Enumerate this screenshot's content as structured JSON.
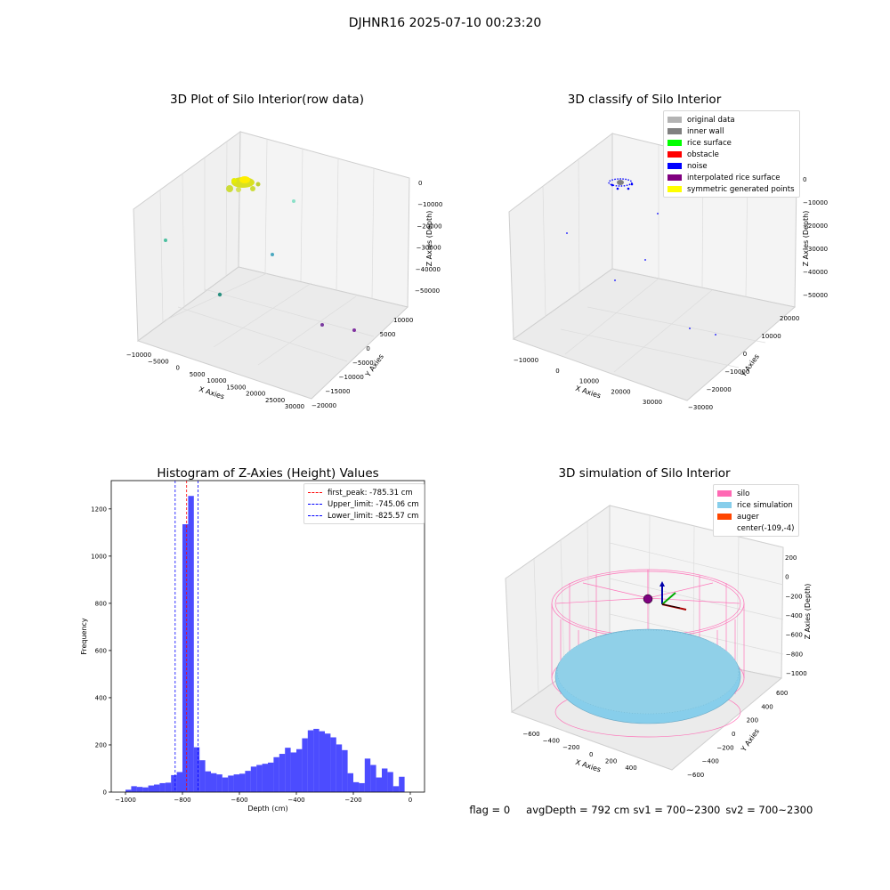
{
  "figure": {
    "title": "DJHNR16 2025-07-10 00:23:20"
  },
  "panels": {
    "raw": {
      "title": "3D Plot of Silo Interior(row data)",
      "xlabel": "X Axies",
      "ylabel": "Y Axies",
      "zlabel": "Z Axies (Depth)",
      "xticks": [
        "−10000",
        "−5000",
        "0",
        "5000",
        "10000",
        "15000",
        "20000",
        "25000",
        "30000"
      ],
      "yticks": [
        "10000",
        "5000",
        "0",
        "−5000",
        "−10000",
        "−15000",
        "−20000"
      ],
      "zticks": [
        "0",
        "−10000",
        "−20000",
        "−30000",
        "−40000",
        "−50000"
      ]
    },
    "classify": {
      "title": "3D classify of Silo Interior",
      "xlabel": "X Axies",
      "ylabel": "Y Axies",
      "zlabel": "Z Axies (Depth)",
      "xticks": [
        "−10000",
        "0",
        "10000",
        "20000",
        "30000"
      ],
      "yticks": [
        "20000",
        "10000",
        "0",
        "−10000",
        "−20000",
        "−30000"
      ],
      "zticks": [
        "0",
        "−10000",
        "−20000",
        "−30000",
        "−40000",
        "−50000"
      ],
      "legend": [
        {
          "label": "original data",
          "color": "#b3b3b3"
        },
        {
          "label": "inner wall",
          "color": "#808080"
        },
        {
          "label": "rice surface",
          "color": "#00ff00"
        },
        {
          "label": "obstacle",
          "color": "#ff0000"
        },
        {
          "label": "noise",
          "color": "#0000ff"
        },
        {
          "label": "interpolated rice surface",
          "color": "#800080"
        },
        {
          "label": "symmetric generated points",
          "color": "#ffff00"
        }
      ]
    },
    "simulation": {
      "title": "3D simulation of Silo Interior",
      "xlabel": "X Axies",
      "ylabel": "Y Axies",
      "zlabel": "Z Axies (Depth)",
      "xticks": [
        "−600",
        "−400",
        "−200",
        "0",
        "200",
        "400"
      ],
      "yticks": [
        "600",
        "400",
        "200",
        "0",
        "−200",
        "−400",
        "−600"
      ],
      "zticks": [
        "200",
        "0",
        "−200",
        "−400",
        "−600",
        "−800",
        "−1000"
      ],
      "legend": [
        {
          "label": "silo",
          "color": "#ff69b4"
        },
        {
          "label": "rice simulation",
          "color": "#87ceeb"
        },
        {
          "label": "auger",
          "color": "#ff4500"
        },
        {
          "label": "center(-109,-4)",
          "color": ""
        }
      ]
    }
  },
  "chart_data": {
    "type": "bar",
    "title": "Histogram of Z-Axies (Height) Values",
    "xlabel": "Depth (cm)",
    "ylabel": "Frequency",
    "xlim": [
      -1050,
      50
    ],
    "ylim": [
      0,
      1320
    ],
    "xticks": [
      -1000,
      -800,
      -600,
      -400,
      -200,
      0
    ],
    "yticks": [
      0,
      200,
      400,
      600,
      800,
      1000,
      1200
    ],
    "bin_width": 20,
    "bin_start": -1000,
    "bar_color": "#0000ff",
    "values": [
      10,
      25,
      22,
      20,
      28,
      32,
      38,
      40,
      72,
      85,
      1135,
      1255,
      190,
      135,
      88,
      80,
      75,
      62,
      70,
      75,
      78,
      90,
      108,
      115,
      120,
      125,
      148,
      162,
      188,
      168,
      182,
      228,
      262,
      268,
      258,
      248,
      232,
      202,
      178,
      80,
      42,
      38,
      142,
      115,
      62,
      100,
      85,
      25,
      65
    ],
    "lines": [
      {
        "label": "first_peak: -785.31 cm",
        "x": -785.31,
        "color": "#ff0000"
      },
      {
        "label": "Upper_limit: -745.06 cm",
        "x": -745.06,
        "color": "#0000ff"
      },
      {
        "label": "Lower_limit: -825.57 cm",
        "x": -825.57,
        "color": "#0000ff"
      }
    ]
  },
  "status": {
    "flag": "flag = 0",
    "avg_depth": "avgDepth = 792 cm",
    "sv1": "sv1 = 700~2300",
    "sv2": "sv2 = 700~2300"
  }
}
